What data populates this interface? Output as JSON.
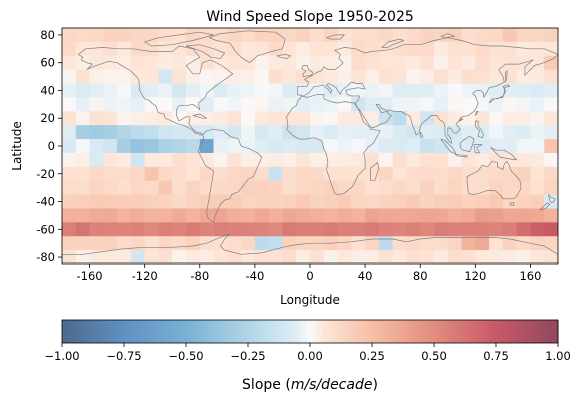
{
  "chart_data": {
    "type": "heatmap",
    "title": "Wind Speed Slope 1950-2025",
    "xlabel": "Longitude",
    "ylabel": "Latitude",
    "xlim": [
      -180,
      180
    ],
    "ylim": [
      -85,
      85
    ],
    "x_ticks": [
      "-160",
      "-120",
      "-80",
      "-40",
      "0",
      "40",
      "80",
      "120",
      "160"
    ],
    "x_tick_values": [
      -160,
      -120,
      -80,
      -40,
      0,
      40,
      80,
      120,
      160
    ],
    "y_ticks": [
      "-80",
      "-60",
      "-40",
      "-20",
      "0",
      "20",
      "40",
      "60",
      "80"
    ],
    "y_tick_values": [
      -80,
      -60,
      -40,
      -20,
      0,
      20,
      40,
      60,
      80
    ],
    "cell_lon_width": 10,
    "cell_lat_height": 10,
    "zonal_slopes": [
      {
        "lat": [
          75,
          85
        ],
        "value": 0.12
      },
      {
        "lat": [
          65,
          75
        ],
        "value": 0.08
      },
      {
        "lat": [
          55,
          65
        ],
        "value": 0.06
      },
      {
        "lat": [
          45,
          55
        ],
        "value": 0.05
      },
      {
        "lat": [
          35,
          45
        ],
        "value": -0.04
      },
      {
        "lat": [
          25,
          35
        ],
        "value": -0.02
      },
      {
        "lat": [
          15,
          25
        ],
        "value": 0.04
      },
      {
        "lat": [
          5,
          15
        ],
        "value": -0.06
      },
      {
        "lat": [
          -5,
          5
        ],
        "value": -0.05
      },
      {
        "lat": [
          -15,
          -5
        ],
        "value": 0.05
      },
      {
        "lat": [
          -25,
          -15
        ],
        "value": 0.1
      },
      {
        "lat": [
          -35,
          -25
        ],
        "value": 0.12
      },
      {
        "lat": [
          -45,
          -35
        ],
        "value": 0.16
      },
      {
        "lat": [
          -55,
          -45
        ],
        "value": 0.34
      },
      {
        "lat": [
          -65,
          -55
        ],
        "value": 0.55
      },
      {
        "lat": [
          -75,
          -65
        ],
        "value": 0.12
      },
      {
        "lat": [
          -85,
          -75
        ],
        "value": 0.06
      }
    ],
    "cell_anomalies": [
      {
        "lon": -170,
        "lat": 10,
        "value": -0.3
      },
      {
        "lon": -160,
        "lat": 10,
        "value": -0.32
      },
      {
        "lon": -150,
        "lat": 10,
        "value": -0.3
      },
      {
        "lon": -140,
        "lat": 10,
        "value": -0.25
      },
      {
        "lon": -130,
        "lat": 10,
        "value": -0.2
      },
      {
        "lon": -120,
        "lat": 10,
        "value": -0.18
      },
      {
        "lon": -110,
        "lat": 10,
        "value": -0.12
      },
      {
        "lon": -100,
        "lat": 10,
        "value": -0.1
      },
      {
        "lon": -150,
        "lat": 0,
        "value": -0.12
      },
      {
        "lon": -140,
        "lat": 0,
        "value": -0.3
      },
      {
        "lon": -130,
        "lat": 0,
        "value": -0.38
      },
      {
        "lon": -120,
        "lat": 0,
        "value": -0.35
      },
      {
        "lon": -110,
        "lat": 0,
        "value": -0.28
      },
      {
        "lon": -100,
        "lat": 0,
        "value": -0.25
      },
      {
        "lon": -90,
        "lat": 0,
        "value": -0.22
      },
      {
        "lon": -80,
        "lat": 0,
        "value": -0.6
      },
      {
        "lon": -160,
        "lat": -10,
        "value": -0.08
      },
      {
        "lon": -130,
        "lat": -10,
        "value": -0.12
      },
      {
        "lon": -30,
        "lat": -20,
        "value": -0.15
      },
      {
        "lon": 30,
        "lat": 30,
        "value": -0.12
      },
      {
        "lon": 50,
        "lat": 20,
        "value": -0.14
      },
      {
        "lon": 60,
        "lat": 20,
        "value": -0.2
      },
      {
        "lon": 80,
        "lat": 20,
        "value": -0.12
      },
      {
        "lon": 70,
        "lat": 10,
        "value": -0.1
      },
      {
        "lon": 80,
        "lat": 0,
        "value": -0.15
      },
      {
        "lon": 90,
        "lat": 0,
        "value": -0.12
      },
      {
        "lon": -20,
        "lat": 10,
        "value": -0.14
      },
      {
        "lon": -10,
        "lat": 10,
        "value": -0.1
      },
      {
        "lon": -110,
        "lat": 50,
        "value": -0.1
      },
      {
        "lon": -100,
        "lat": 40,
        "value": -0.1
      },
      {
        "lon": -120,
        "lat": -20,
        "value": 0.22
      },
      {
        "lon": -110,
        "lat": -30,
        "value": 0.2
      },
      {
        "lon": 150,
        "lat": -20,
        "value": 0.15
      },
      {
        "lon": 170,
        "lat": -40,
        "value": -0.08
      },
      {
        "lon": 170,
        "lat": 0,
        "value": 0.22
      },
      {
        "lon": 170,
        "lat": 60,
        "value": 0.18
      },
      {
        "lon": 140,
        "lat": 80,
        "value": 0.2
      },
      {
        "lon": 150,
        "lat": -60,
        "value": 0.65
      },
      {
        "lon": 160,
        "lat": -60,
        "value": 0.72
      },
      {
        "lon": 170,
        "lat": -60,
        "value": 0.75
      },
      {
        "lon": -170,
        "lat": -60,
        "value": 0.62
      },
      {
        "lon": 120,
        "lat": -50,
        "value": 0.42
      },
      {
        "lon": 130,
        "lat": -50,
        "value": 0.4
      },
      {
        "lon": -40,
        "lat": -70,
        "value": -0.2
      },
      {
        "lon": -30,
        "lat": -70,
        "value": -0.18
      },
      {
        "lon": 50,
        "lat": -70,
        "value": -0.2
      },
      {
        "lon": 110,
        "lat": -70,
        "value": 0.3
      },
      {
        "lon": 120,
        "lat": -70,
        "value": 0.35
      },
      {
        "lon": -130,
        "lat": -80,
        "value": -0.1
      }
    ],
    "colorscale": "RdBu_r",
    "alpha": 0.72,
    "colorbar": {
      "label_prefix": "Slope (",
      "label_math": "m/s/decade",
      "label_suffix": ")",
      "range": [
        -1,
        1
      ],
      "tick_values": [
        -1,
        -0.75,
        -0.5,
        -0.25,
        0,
        0.25,
        0.5,
        0.75,
        1
      ],
      "tick_labels": [
        "−1.00",
        "−0.75",
        "−0.50",
        "−0.25",
        "0.00",
        "0.25",
        "0.50",
        "0.75",
        "1.00"
      ],
      "orientation": "horizontal",
      "placement": "bottom"
    },
    "coastline_color": "#7f7f7f",
    "grid": false
  }
}
